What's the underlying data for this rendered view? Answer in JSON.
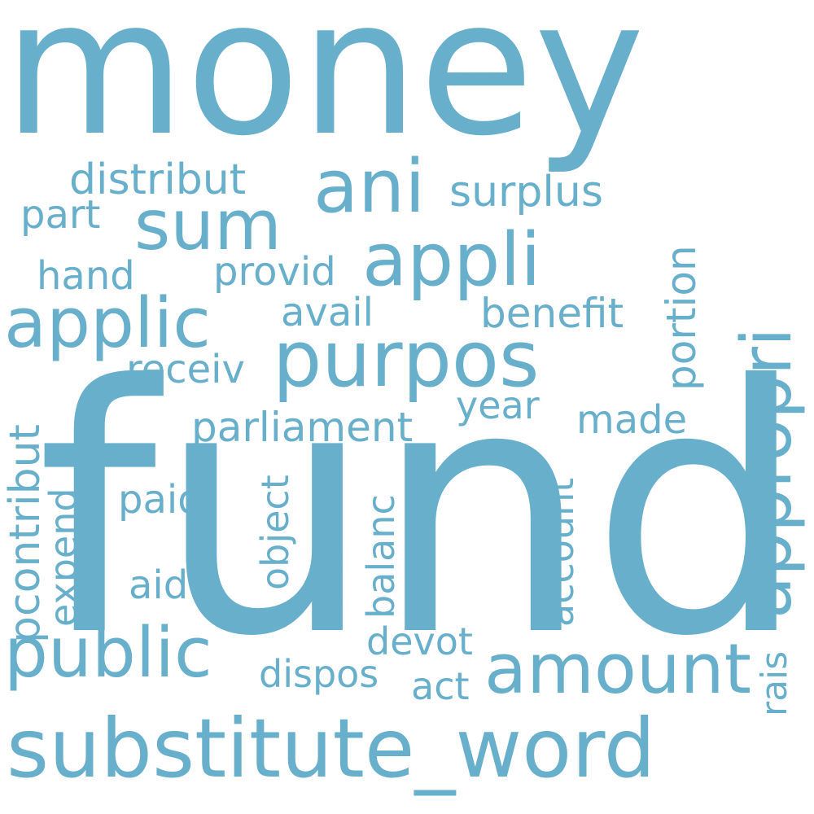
{
  "color": "#67afcb",
  "words": {
    "money": "money",
    "fund": "fund",
    "substitute_word": "substitute_word",
    "purpos": "purpos",
    "appli": "appli",
    "applic": "applic",
    "ani": "ani",
    "sum": "sum",
    "public": "public",
    "amount": "amount",
    "appropri": "appropri",
    "distribut": "distribut",
    "surplus": "surplus",
    "part": "part",
    "hand": "hand",
    "provid": "provid",
    "avail": "avail",
    "benefit": "benefit",
    "portion": "portion",
    "receiv": "receiv",
    "year": "year",
    "made": "made",
    "parliament": "parliament",
    "pcontribut": "pcontribut",
    "expend": "expend",
    "paid": "paid",
    "object": "object",
    "balanc": "balanc",
    "account": "account",
    "aid": "aid",
    "devot": "devot",
    "dispos": "dispos",
    "act": "act",
    "rais": "rais"
  }
}
